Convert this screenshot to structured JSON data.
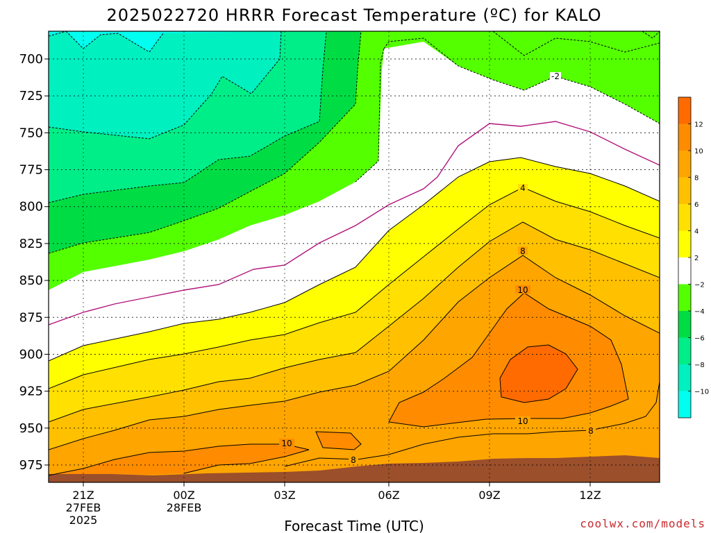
{
  "chart_data": {
    "type": "heatmap",
    "title": "2025022720 HRRR Forecast Temperature (ºC) for KALO",
    "xlabel": "Forecast Time (UTC)",
    "ylabel": "",
    "y_axis": {
      "reversed": true,
      "ticks": [
        700,
        725,
        750,
        775,
        800,
        825,
        850,
        875,
        900,
        925,
        950,
        975
      ]
    },
    "x_ticks": [
      {
        "label": "21Z",
        "sub1": "27FEB",
        "sub2": "2025"
      },
      {
        "label": "00Z",
        "sub1": "28FEB",
        "sub2": ""
      },
      {
        "label": "03Z",
        "sub1": "",
        "sub2": ""
      },
      {
        "label": "06Z",
        "sub1": "",
        "sub2": ""
      },
      {
        "label": "09Z",
        "sub1": "",
        "sub2": ""
      },
      {
        "label": "12Z",
        "sub1": "",
        "sub2": ""
      }
    ],
    "colorbar": {
      "labels": [
        "12",
        "10",
        "8",
        "6",
        "4",
        "2",
        "−2",
        "−4",
        "−6",
        "−8",
        "−10"
      ],
      "colors": [
        "#ff6b00",
        "#ff8c00",
        "#ffa500",
        "#ffc000",
        "#ffe000",
        "#ffff00",
        "#ffffff",
        "#54ff00",
        "#00dd44",
        "#00ee88",
        "#00f0c0",
        "#00fff0"
      ]
    },
    "contour_labels": [
      "-2",
      "4",
      "8",
      "10",
      "10",
      "10",
      "8",
      "8"
    ],
    "fill_colors": {
      "ground": "#9b4f2b",
      "t12": "#ff6b00",
      "t10": "#ff8c00",
      "t8": "#ffa500",
      "t6": "#ffc000",
      "t4": "#ffe000",
      "t2": "#ffff00",
      "t0": "#ffffff",
      "tm2": "#54ff00",
      "tm4": "#00dd44",
      "tm6": "#00ee88",
      "tm8": "#00f0c0",
      "tm10": "#00fff0"
    }
  },
  "credit": "coolwx.com/models"
}
